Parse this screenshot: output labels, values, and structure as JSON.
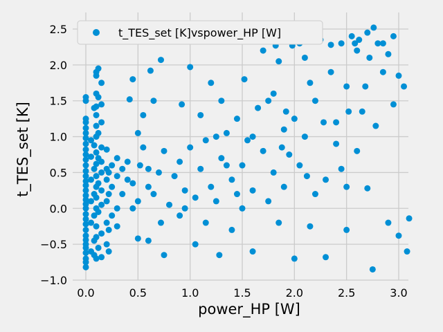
{
  "chart_data": {
    "type": "scatter",
    "xlabel": "power_HP [W]",
    "ylabel": "t_TES_set [K]",
    "xlim": [
      -0.15,
      3.25
    ],
    "ylim": [
      -1.0,
      2.65
    ],
    "xticks": [
      0.0,
      0.5,
      1.0,
      1.5,
      2.0,
      2.5,
      3.0
    ],
    "xtick_labels": [
      "0.0",
      "0.5",
      "1.0",
      "1.5",
      "2.0",
      "2.5",
      "3.0"
    ],
    "yticks": [
      -1.0,
      -0.5,
      0.0,
      0.5,
      1.0,
      1.5,
      2.0,
      2.5
    ],
    "ytick_labels": [
      "−1.0",
      "−0.5",
      "0.0",
      "0.5",
      "1.0",
      "1.5",
      "2.0",
      "2.5"
    ],
    "grid": true,
    "legend_position": "upper-left",
    "series": [
      {
        "name": "t_TES_set [K]vspower_HP [W]",
        "color": "#008fd5",
        "points": [
          [
            0.0,
            -0.82
          ],
          [
            0.0,
            -0.75
          ],
          [
            0.0,
            -0.7
          ],
          [
            0.0,
            -0.62
          ],
          [
            0.0,
            -0.55
          ],
          [
            0.0,
            -0.5
          ],
          [
            0.0,
            -0.44
          ],
          [
            0.0,
            -0.38
          ],
          [
            0.0,
            -0.3
          ],
          [
            0.0,
            -0.22
          ],
          [
            0.0,
            -0.15
          ],
          [
            0.0,
            -0.08
          ],
          [
            0.0,
            0.0
          ],
          [
            0.0,
            0.06
          ],
          [
            0.0,
            0.12
          ],
          [
            0.0,
            0.18
          ],
          [
            0.0,
            0.25
          ],
          [
            0.0,
            0.32
          ],
          [
            0.0,
            0.38
          ],
          [
            0.0,
            0.45
          ],
          [
            0.0,
            0.52
          ],
          [
            0.0,
            0.6
          ],
          [
            0.0,
            0.68
          ],
          [
            0.0,
            0.75
          ],
          [
            0.0,
            0.82
          ],
          [
            0.0,
            0.9
          ],
          [
            0.0,
            0.98
          ],
          [
            0.0,
            1.05
          ],
          [
            0.0,
            1.12
          ],
          [
            0.0,
            1.2
          ],
          [
            0.0,
            1.25
          ],
          [
            0.0,
            1.5
          ],
          [
            0.0,
            1.55
          ],
          [
            0.05,
            -0.6
          ],
          [
            0.05,
            -0.2
          ],
          [
            0.05,
            0.1
          ],
          [
            0.05,
            0.4
          ],
          [
            0.05,
            0.72
          ],
          [
            0.05,
            0.95
          ],
          [
            0.08,
            -0.65
          ],
          [
            0.08,
            -0.45
          ],
          [
            0.08,
            -0.1
          ],
          [
            0.08,
            0.2
          ],
          [
            0.08,
            0.55
          ],
          [
            0.08,
            0.88
          ],
          [
            0.08,
            1.4
          ],
          [
            0.1,
            -0.7
          ],
          [
            0.1,
            -0.4
          ],
          [
            0.1,
            -0.25
          ],
          [
            0.1,
            0.0
          ],
          [
            0.1,
            0.15
          ],
          [
            0.1,
            0.3
          ],
          [
            0.1,
            0.45
          ],
          [
            0.1,
            0.62
          ],
          [
            0.1,
            0.78
          ],
          [
            0.1,
            1.0
          ],
          [
            0.1,
            1.15
          ],
          [
            0.1,
            1.3
          ],
          [
            0.1,
            1.42
          ],
          [
            0.1,
            1.6
          ],
          [
            0.1,
            1.85
          ],
          [
            0.1,
            1.9
          ],
          [
            0.12,
            -0.55
          ],
          [
            0.12,
            -0.05
          ],
          [
            0.12,
            0.35
          ],
          [
            0.12,
            0.7
          ],
          [
            0.12,
            1.05
          ],
          [
            0.12,
            1.55
          ],
          [
            0.12,
            1.95
          ],
          [
            0.15,
            -0.68
          ],
          [
            0.15,
            -0.35
          ],
          [
            0.15,
            0.05
          ],
          [
            0.15,
            0.25
          ],
          [
            0.15,
            0.5
          ],
          [
            0.15,
            0.65
          ],
          [
            0.15,
            0.85
          ],
          [
            0.15,
            1.2
          ],
          [
            0.15,
            1.45
          ],
          [
            0.15,
            1.75
          ],
          [
            0.2,
            -0.5
          ],
          [
            0.2,
            -0.2
          ],
          [
            0.2,
            0.1
          ],
          [
            0.2,
            0.4
          ],
          [
            0.2,
            0.55
          ],
          [
            0.2,
            0.82
          ],
          [
            0.22,
            -0.6
          ],
          [
            0.22,
            -0.3
          ],
          [
            0.22,
            0.2
          ],
          [
            0.22,
            0.5
          ],
          [
            0.25,
            -0.1
          ],
          [
            0.25,
            0.3
          ],
          [
            0.25,
            0.6
          ],
          [
            0.3,
            -0.25
          ],
          [
            0.3,
            0.0
          ],
          [
            0.3,
            0.45
          ],
          [
            0.3,
            0.7
          ],
          [
            0.35,
            0.2
          ],
          [
            0.35,
            0.55
          ],
          [
            0.4,
            0.4
          ],
          [
            0.4,
            0.65
          ],
          [
            0.45,
            0.0
          ],
          [
            0.45,
            0.35
          ],
          [
            0.5,
            -0.42
          ],
          [
            0.5,
            0.1
          ],
          [
            0.52,
            0.6
          ],
          [
            0.55,
            0.85
          ],
          [
            0.6,
            0.3
          ],
          [
            0.6,
            -0.45
          ],
          [
            0.42,
            1.52
          ],
          [
            0.45,
            1.8
          ],
          [
            0.5,
            1.05
          ],
          [
            0.55,
            1.3
          ],
          [
            0.62,
            1.92
          ],
          [
            0.65,
            1.5
          ],
          [
            0.72,
            2.07
          ],
          [
            0.6,
            0.55
          ],
          [
            0.65,
            0.2
          ],
          [
            0.7,
            0.5
          ],
          [
            0.72,
            -0.2
          ],
          [
            0.75,
            0.8
          ],
          [
            0.8,
            0.05
          ],
          [
            0.85,
            0.45
          ],
          [
            0.9,
            -0.1
          ],
          [
            0.9,
            0.65
          ],
          [
            0.92,
            1.45
          ],
          [
            0.95,
            0.25
          ],
          [
            1.0,
            0.85
          ],
          [
            1.0,
            1.97
          ],
          [
            1.05,
            0.15
          ],
          [
            1.05,
            -0.5
          ],
          [
            1.1,
            0.55
          ],
          [
            1.1,
            1.3
          ],
          [
            1.15,
            0.95
          ],
          [
            1.2,
            0.3
          ],
          [
            1.2,
            1.75
          ],
          [
            1.25,
            0.1
          ],
          [
            1.28,
            -0.65
          ],
          [
            1.3,
            0.7
          ],
          [
            1.3,
            1.5
          ],
          [
            1.35,
            1.05
          ],
          [
            1.4,
            0.4
          ],
          [
            1.4,
            -0.3
          ],
          [
            1.45,
            1.25
          ],
          [
            1.5,
            0.6
          ],
          [
            1.5,
            0.0
          ],
          [
            1.52,
            1.8
          ],
          [
            1.55,
            2.35
          ],
          [
            1.55,
            0.95
          ],
          [
            1.6,
            0.25
          ],
          [
            1.6,
            -0.6
          ],
          [
            1.65,
            1.4
          ],
          [
            1.7,
            0.8
          ],
          [
            1.7,
            2.2
          ],
          [
            1.75,
            0.1
          ],
          [
            1.8,
            1.6
          ],
          [
            1.8,
            0.5
          ],
          [
            1.85,
            -0.2
          ],
          [
            1.85,
            2.05
          ],
          [
            1.9,
            1.1
          ],
          [
            1.9,
            0.3
          ],
          [
            1.95,
            0.75
          ],
          [
            2.0,
            1.25
          ],
          [
            2.0,
            -0.7
          ],
          [
            2.05,
            2.3
          ],
          [
            2.05,
            0.6
          ],
          [
            2.1,
            1.0
          ],
          [
            2.1,
            2.1
          ],
          [
            2.15,
            -0.25
          ],
          [
            2.2,
            1.5
          ],
          [
            2.2,
            0.2
          ],
          [
            2.25,
            2.35
          ],
          [
            2.3,
            0.4
          ],
          [
            2.3,
            -0.68
          ],
          [
            2.35,
            1.9
          ],
          [
            2.4,
            1.2
          ],
          [
            2.4,
            0.9
          ],
          [
            2.45,
            2.3
          ],
          [
            2.5,
            -0.3
          ],
          [
            2.5,
            1.7
          ],
          [
            2.5,
            0.3
          ],
          [
            2.55,
            2.4
          ],
          [
            2.6,
            0.8
          ],
          [
            2.6,
            2.2
          ],
          [
            2.65,
            1.35
          ],
          [
            2.7,
            0.28
          ],
          [
            2.7,
            2.45
          ],
          [
            2.75,
            -0.85
          ],
          [
            2.76,
            2.52
          ],
          [
            2.78,
            1.15
          ],
          [
            2.8,
            2.3
          ],
          [
            2.85,
            1.9
          ],
          [
            2.9,
            -0.2
          ],
          [
            2.95,
            2.4
          ],
          [
            2.95,
            1.45
          ],
          [
            3.0,
            1.85
          ],
          [
            3.0,
            -0.38
          ],
          [
            3.05,
            1.7
          ],
          [
            3.08,
            -0.6
          ],
          [
            3.1,
            -0.14
          ],
          [
            0.75,
            -0.65
          ],
          [
            0.95,
            0.0
          ],
          [
            1.15,
            -0.2
          ],
          [
            1.25,
            1.0
          ],
          [
            1.35,
            0.6
          ],
          [
            1.45,
            0.2
          ],
          [
            1.6,
            1.0
          ],
          [
            1.75,
            1.5
          ],
          [
            1.82,
            2.27
          ],
          [
            1.88,
            0.85
          ],
          [
            1.92,
            1.35
          ],
          [
            1.98,
            2.27
          ],
          [
            2.12,
            0.45
          ],
          [
            2.15,
            1.75
          ],
          [
            2.28,
            1.2
          ],
          [
            2.35,
            2.28
          ],
          [
            2.45,
            0.55
          ],
          [
            2.52,
            1.35
          ],
          [
            2.58,
            2.3
          ],
          [
            2.62,
            2.35
          ],
          [
            2.68,
            1.7
          ],
          [
            2.72,
            2.1
          ],
          [
            2.85,
            2.3
          ],
          [
            2.9,
            2.15
          ]
        ]
      }
    ]
  }
}
